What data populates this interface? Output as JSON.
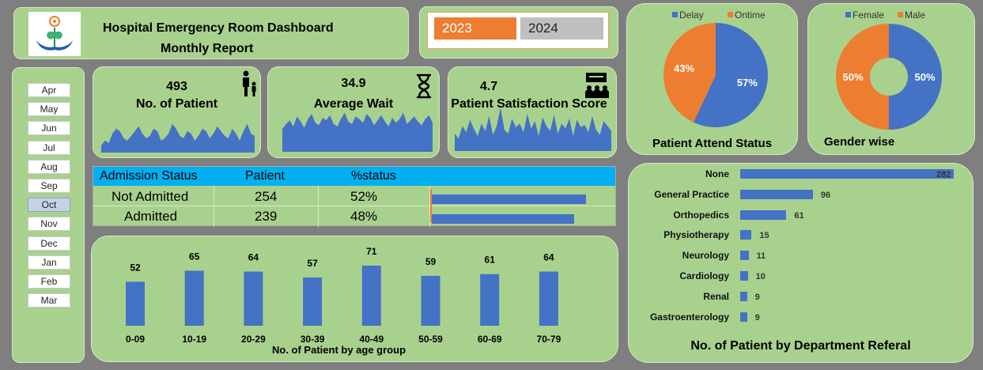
{
  "header": {
    "title_line1": "Hospital Emergency Room Dashboard",
    "title_line2": "Monthly Report"
  },
  "years": [
    {
      "label": "2023",
      "selected": true
    },
    {
      "label": "2024",
      "selected": false
    }
  ],
  "months": [
    {
      "label": "Apr",
      "selected": false
    },
    {
      "label": "May",
      "selected": false
    },
    {
      "label": "Jun",
      "selected": false
    },
    {
      "label": "Jul",
      "selected": false
    },
    {
      "label": "Aug",
      "selected": false
    },
    {
      "label": "Sep",
      "selected": false
    },
    {
      "label": "Oct",
      "selected": true
    },
    {
      "label": "Nov",
      "selected": false
    },
    {
      "label": "Dec",
      "selected": false
    },
    {
      "label": "Jan",
      "selected": false
    },
    {
      "label": "Feb",
      "selected": false
    },
    {
      "label": "Mar",
      "selected": false
    }
  ],
  "kpis": {
    "patients": {
      "value": "493",
      "label": "No. of Patient",
      "icon": "family-icon"
    },
    "wait": {
      "value": "34.9",
      "label": "Average Wait",
      "icon": "hourglass-icon"
    },
    "satisfaction": {
      "value": "4.7",
      "label": "Patient Satisfaction Score",
      "icon": "meeting-icon"
    }
  },
  "admission": {
    "headers": [
      "Admission Status",
      "Patient",
      "%status"
    ],
    "rows": [
      {
        "status": "Not Admitted",
        "patient": "254",
        "pct": "52%",
        "fraction": 0.52
      },
      {
        "status": "Admitted",
        "patient": "239",
        "pct": "48%",
        "fraction": 0.48
      }
    ]
  },
  "colors": {
    "accent_blue": "#4472c4",
    "accent_orange": "#ed7d31",
    "panel_green": "#a9d18e",
    "table_header": "#00b0f0"
  },
  "chart_data": [
    {
      "type": "bar",
      "title": "No. of Patient by age group",
      "categories": [
        "0-09",
        "10-19",
        "20-29",
        "30-39",
        "40-49",
        "50-59",
        "60-69",
        "70-79"
      ],
      "values": [
        52,
        65,
        64,
        57,
        71,
        59,
        61,
        64
      ],
      "ylim": [
        0,
        80
      ]
    },
    {
      "type": "pie",
      "title": "Patient Attend Status",
      "categories": [
        "Delay",
        "Ontime"
      ],
      "values": [
        57,
        43
      ],
      "labels": [
        "57%",
        "43%"
      ],
      "colors": [
        "#4472c4",
        "#ed7d31"
      ]
    },
    {
      "type": "pie",
      "title": "Gender wise",
      "categories": [
        "Female",
        "Male"
      ],
      "values": [
        50,
        50
      ],
      "labels": [
        "50%",
        "50%"
      ],
      "colors": [
        "#4472c4",
        "#ed7d31"
      ]
    },
    {
      "type": "bar",
      "title": "No. of Patient by Department Referal",
      "categories": [
        "None",
        "General Practice",
        "Orthopedics",
        "Physiotherapy",
        "Neurology",
        "Cardiology",
        "Renal",
        "Gastroenterology"
      ],
      "values": [
        282,
        96,
        61,
        15,
        11,
        10,
        9,
        9
      ],
      "xlim": [
        0,
        300
      ]
    },
    {
      "type": "area",
      "values": [
        3,
        5,
        4,
        8,
        10,
        9,
        6,
        5,
        7,
        9,
        11,
        8,
        6,
        7,
        10,
        9,
        5,
        6,
        8,
        12,
        10,
        7,
        6,
        9,
        8,
        5,
        7,
        10,
        9,
        6,
        8,
        11,
        9,
        7,
        6,
        10,
        8,
        5,
        9,
        12,
        8,
        7
      ]
    },
    {
      "type": "area",
      "values": [
        18,
        22,
        25,
        20,
        28,
        24,
        19,
        26,
        30,
        23,
        21,
        27,
        25,
        29,
        22,
        20,
        26,
        31,
        24,
        22,
        28,
        26,
        23,
        30,
        27,
        21,
        25,
        29,
        24,
        20,
        27,
        23,
        26,
        31,
        22,
        25,
        28,
        24,
        21,
        26,
        29,
        23
      ]
    },
    {
      "type": "area",
      "values": [
        14,
        10,
        20,
        15,
        25,
        18,
        12,
        22,
        16,
        28,
        13,
        20,
        35,
        17,
        14,
        26,
        19,
        22,
        15,
        30,
        18,
        24,
        12,
        27,
        20,
        16,
        29,
        14,
        22,
        18,
        26,
        12,
        25,
        19,
        21,
        15,
        28,
        17,
        13,
        24,
        20,
        16
      ]
    }
  ]
}
